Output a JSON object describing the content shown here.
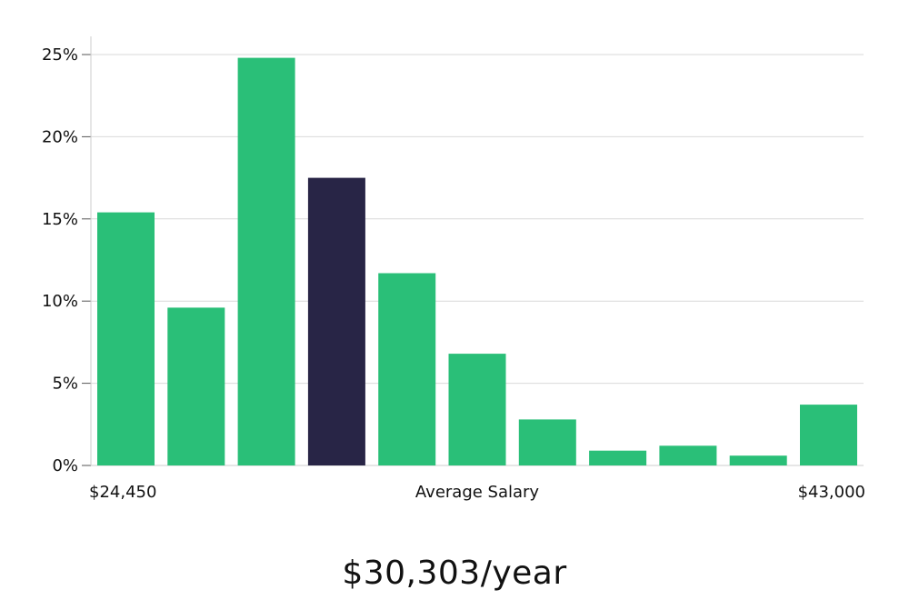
{
  "chart_data": {
    "type": "bar",
    "title": "",
    "xlabel": "Average Salary",
    "ylabel": "",
    "x_start_label": "$24,450",
    "x_end_label": "$43,000",
    "ylim": [
      0,
      25
    ],
    "y_ticks": [
      "0%",
      "5%",
      "10%",
      "15%",
      "20%",
      "25%"
    ],
    "y_tick_values": [
      0,
      5,
      10,
      15,
      20,
      25
    ],
    "values": [
      15.4,
      9.6,
      24.8,
      17.5,
      11.7,
      6.8,
      2.8,
      0.9,
      1.2,
      0.6,
      3.7
    ],
    "highlight_index": 3,
    "grid": true,
    "colors": {
      "bar": "#2abf78",
      "highlight": "#282546",
      "grid": "#d9d9d9",
      "axis": "#cccccc"
    }
  },
  "summary": {
    "salary": "$30,303/year"
  }
}
